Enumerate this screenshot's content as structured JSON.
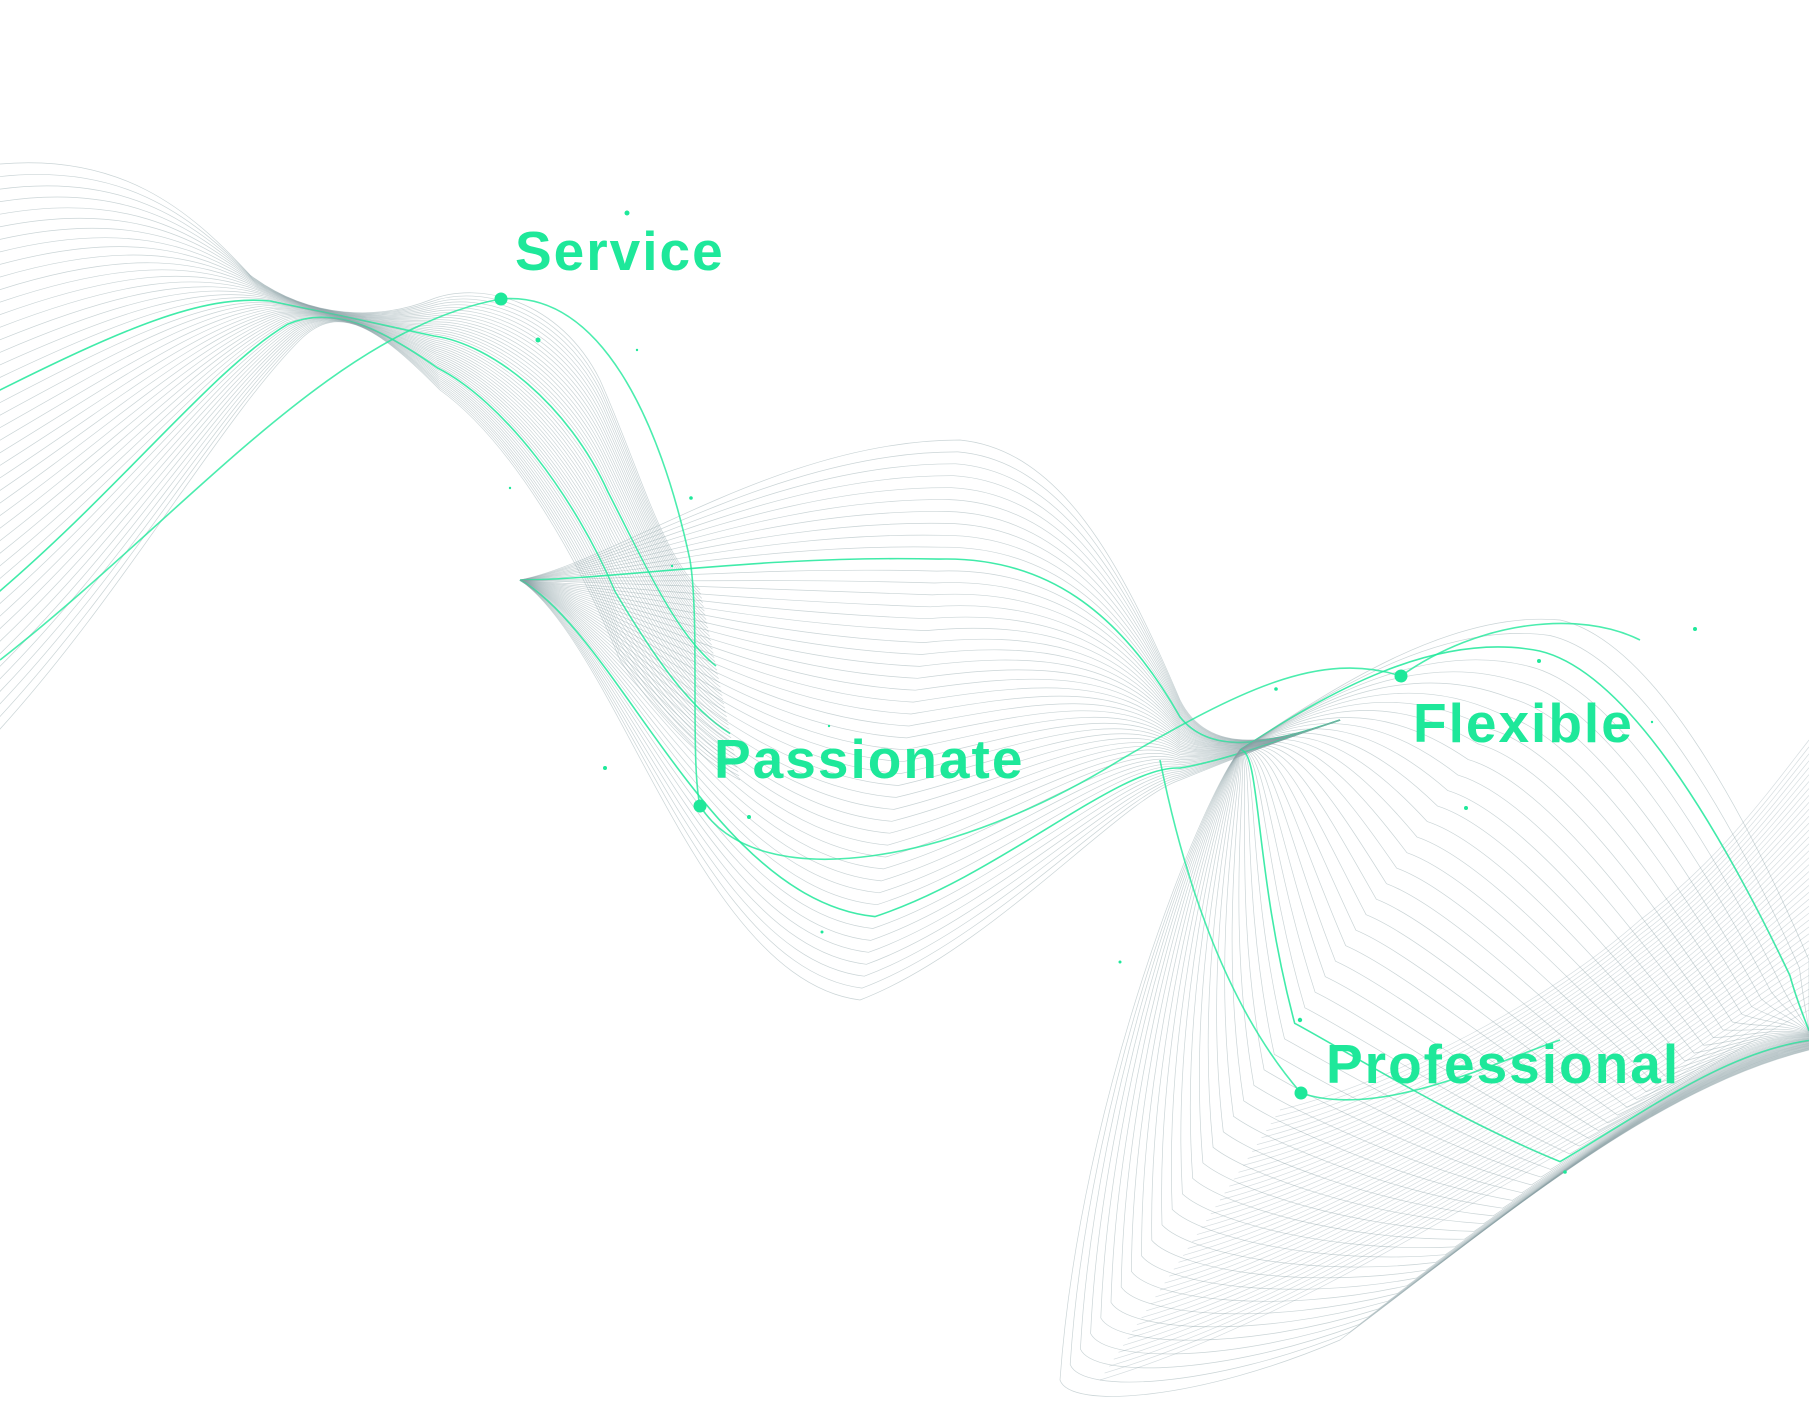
{
  "labels": {
    "service": "Service",
    "passionate": "Passionate",
    "flexible": "Flexible",
    "professional": "Professional"
  },
  "colors": {
    "accent": "#1ee89a",
    "line": "#8a9fa5",
    "background": "#ffffff"
  },
  "icons": {
    "node": "node-dot-icon",
    "particle": "sparkle-dot-icon"
  }
}
